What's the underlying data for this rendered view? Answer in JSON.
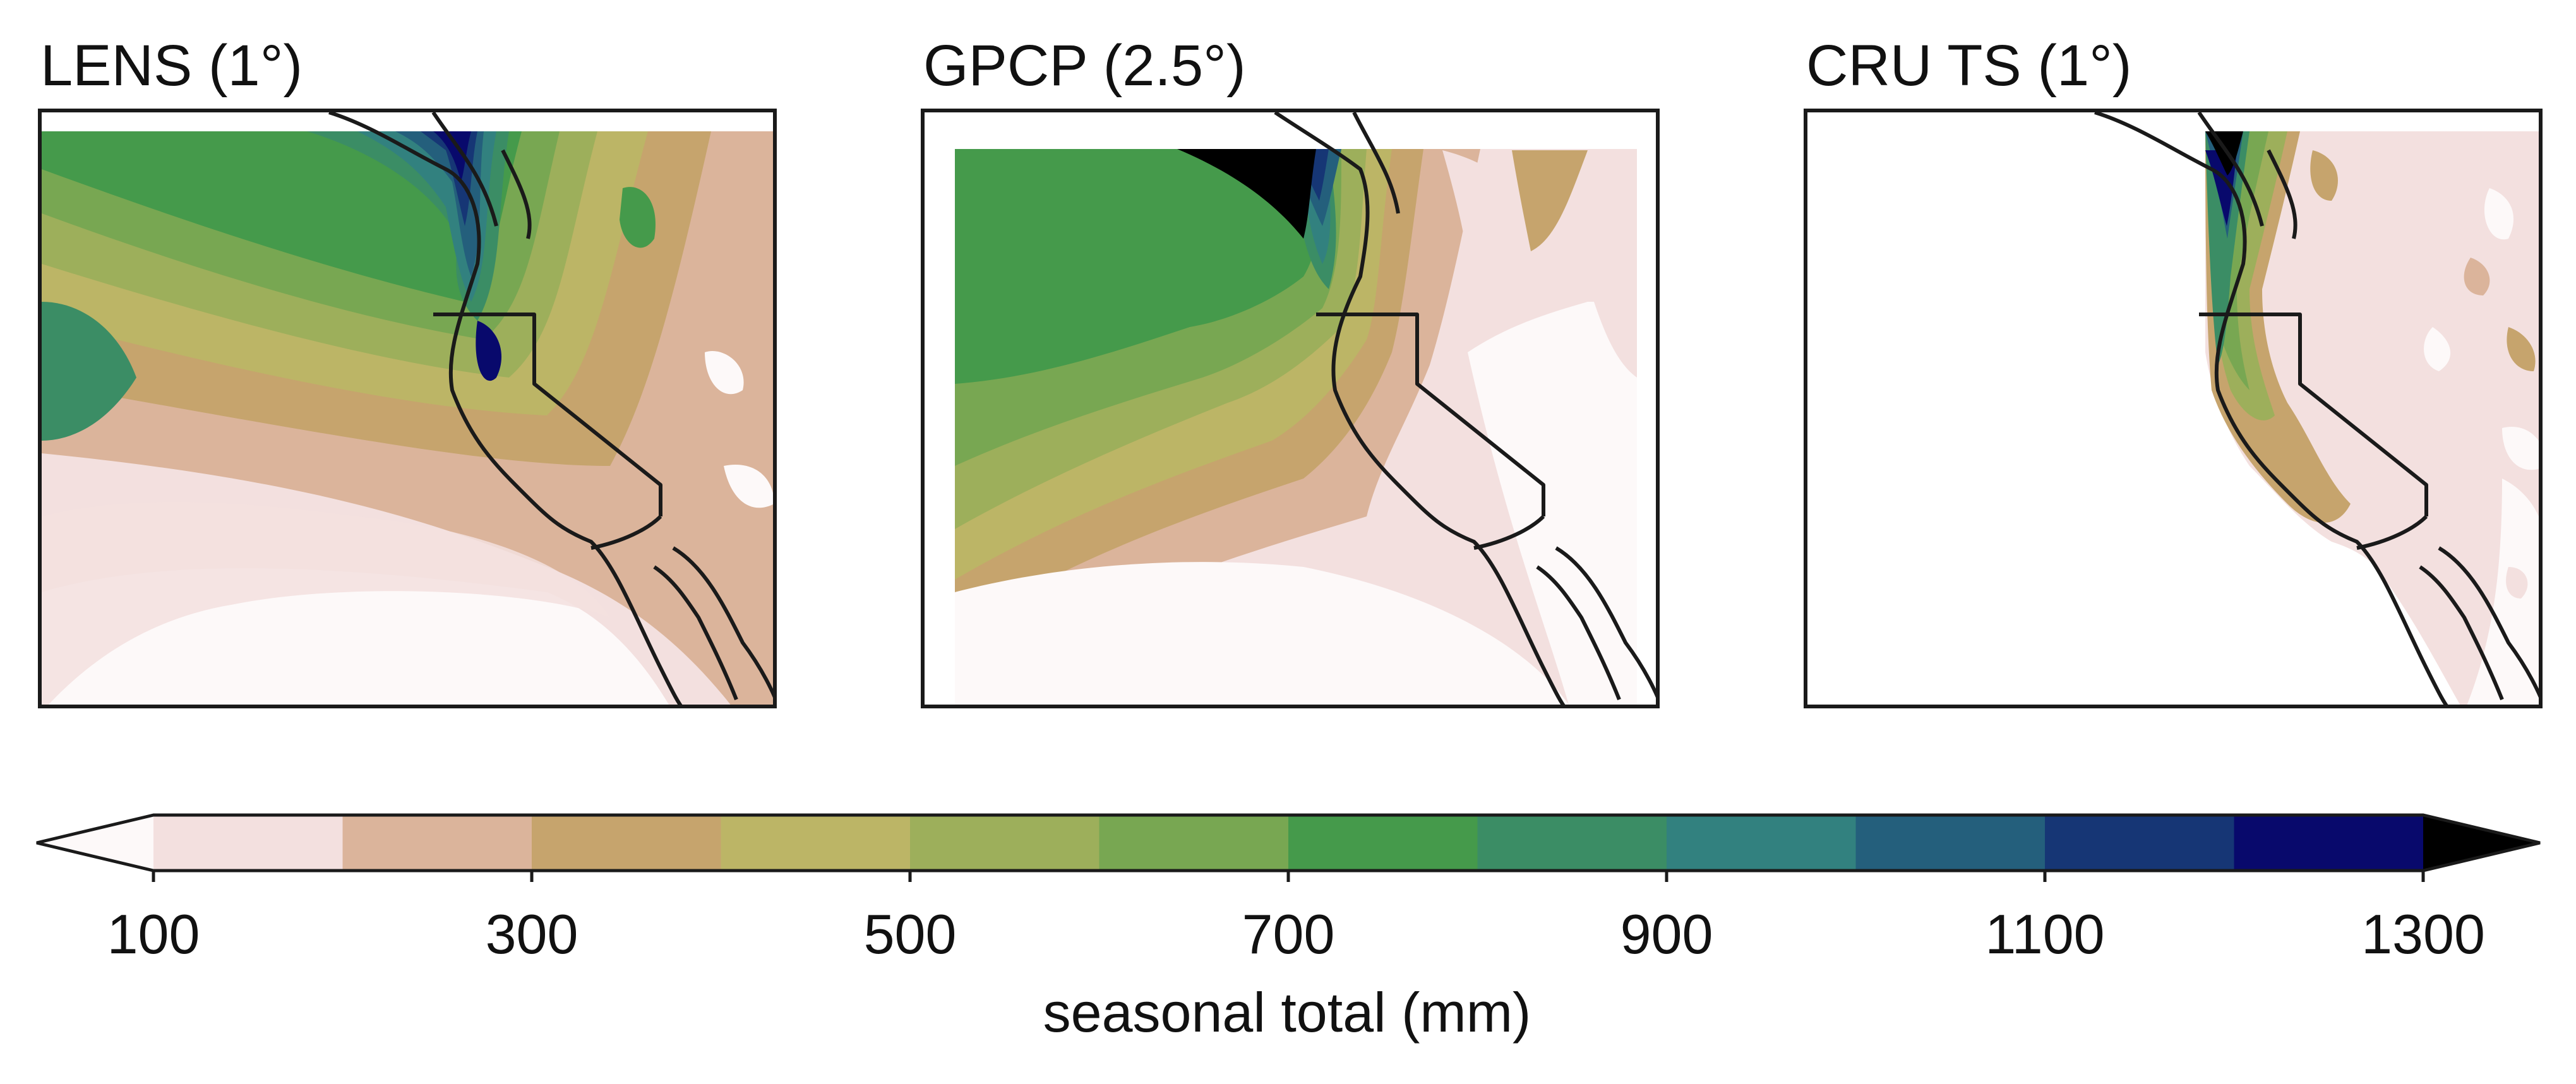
{
  "panels": [
    {
      "title": "LENS (1°)"
    },
    {
      "title": "GPCP (2.5°)"
    },
    {
      "title": "CRU TS (1°)"
    }
  ],
  "colorbar": {
    "label": "seasonal total (mm)",
    "ticks": [
      "100",
      "300",
      "500",
      "700",
      "900",
      "1100",
      "1300"
    ],
    "min": 100,
    "max": 1300,
    "step": 100,
    "under_color": "#fdf9f9",
    "over_color": "#000000",
    "colors": [
      "#f3e0df",
      "#dbb49b",
      "#c6a46d",
      "#bcb566",
      "#9daf5b",
      "#78a752",
      "#459a4b",
      "#3b8d65",
      "#32817f",
      "#245f7c",
      "#163675",
      "#08096c"
    ]
  }
}
